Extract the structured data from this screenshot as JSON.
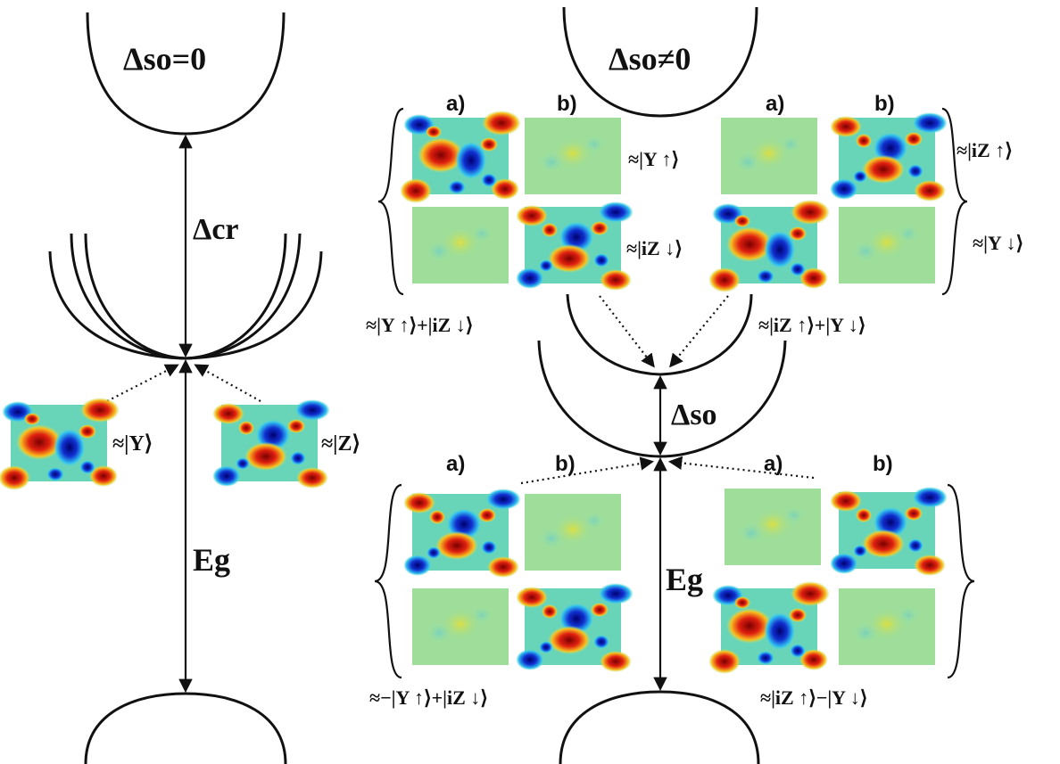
{
  "left": {
    "title": "Δso=0",
    "delta_cr": "Δcr",
    "eg": "Eg",
    "state_y": "≈|Y⟩",
    "state_z": "≈|Z⟩"
  },
  "right": {
    "title": "Δso≠0",
    "delta_so": "Δso",
    "eg": "Eg",
    "col_a": "a)",
    "col_b": "b)",
    "upper_left_row1": "≈|Y ↑⟩",
    "upper_left_row2": "≈|iZ ↓⟩",
    "upper_right_row1": "≈|iZ ↑⟩",
    "upper_right_row2": "≈|Y ↓⟩",
    "upper_left_combo": "≈|Y ↑⟩+|iZ ↓⟩",
    "upper_right_combo": "≈|iZ ↑⟩+|Y ↓⟩",
    "lower_left_combo": "≈−|Y ↑⟩+|iZ ↓⟩",
    "lower_right_combo": "≈|iZ ↑⟩−|Y ↓⟩"
  },
  "colors": {
    "red": "#c81e12",
    "blue": "#1838c8",
    "cyan": "#3ec8e8",
    "yellow": "#f0e040",
    "green": "#7ed89a"
  }
}
